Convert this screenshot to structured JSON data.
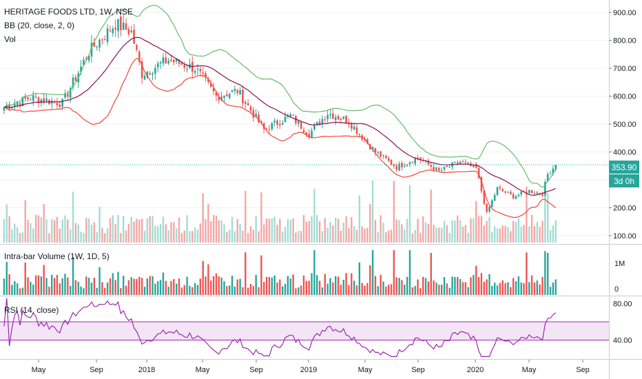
{
  "legend": {
    "title": "HERITAGE FOODS LTD, 1W, NSE",
    "bb": "BB (20, close, 2, 0)",
    "vol": "Vol",
    "intrabar": "Intra-bar Volume (1W, 1D, 5)",
    "rsi": "RSI (14, close)"
  },
  "price_badge": {
    "value": "353.90",
    "countdown": "3d 0h",
    "color": "#26a69a"
  },
  "colors": {
    "up": "#26a69a",
    "down": "#ef5350",
    "up_vol": "#a3dcd4",
    "down_vol": "#f5a6a5",
    "bb_upper": "#66bb6a",
    "bb_lower": "#f44336",
    "bb_basis": "#880e4f",
    "rsi": "#9c27b0",
    "rsi_band": "#f3e5f5"
  },
  "chart_data": [
    {
      "type": "candlestick",
      "title": "HERITAGE FOODS LTD, 1W, NSE",
      "y_ticks": [
        "900.00",
        "800.00",
        "700.00",
        "600.00",
        "500.00",
        "400.00",
        "300.00",
        "200.00",
        "100.00"
      ],
      "ylim": [
        75,
        945
      ],
      "x_ticks": [
        "May",
        "Sep",
        "2018",
        "May",
        "Sep",
        "2019",
        "May",
        "Sep",
        "2020",
        "May",
        "Sep"
      ],
      "last_close": 353.9,
      "anchors": [
        {
          "w": 0,
          "v": 560
        },
        {
          "w": 10,
          "v": 595
        },
        {
          "w": 22,
          "v": 575
        },
        {
          "w": 32,
          "v": 760
        },
        {
          "w": 42,
          "v": 860
        },
        {
          "w": 48,
          "v": 830
        },
        {
          "w": 52,
          "v": 680
        },
        {
          "w": 62,
          "v": 730
        },
        {
          "w": 72,
          "v": 700
        },
        {
          "w": 80,
          "v": 600
        },
        {
          "w": 88,
          "v": 620
        },
        {
          "w": 98,
          "v": 480
        },
        {
          "w": 108,
          "v": 530
        },
        {
          "w": 115,
          "v": 465
        },
        {
          "w": 122,
          "v": 540
        },
        {
          "w": 130,
          "v": 510
        },
        {
          "w": 140,
          "v": 400
        },
        {
          "w": 148,
          "v": 345
        },
        {
          "w": 156,
          "v": 380
        },
        {
          "w": 164,
          "v": 330
        },
        {
          "w": 172,
          "v": 365
        },
        {
          "w": 178,
          "v": 340
        },
        {
          "w": 182,
          "v": 180
        },
        {
          "w": 186,
          "v": 270
        },
        {
          "w": 192,
          "v": 240
        },
        {
          "w": 198,
          "v": 260
        },
        {
          "w": 203,
          "v": 250
        },
        {
          "w": 205,
          "v": 320
        },
        {
          "w": 208,
          "v": 353.9
        }
      ],
      "series": [
        {
          "name": "BB (20, close, 2, 0)",
          "indicator": "bollinger_bands",
          "length": 20,
          "mult": 2
        }
      ]
    },
    {
      "type": "bar",
      "title": "Vol"
    },
    {
      "type": "bar",
      "title": "Intra-bar Volume (1W, 1D, 5)",
      "y_ticks": [
        "1M",
        "0"
      ]
    },
    {
      "type": "line",
      "title": "RSI (14, close)",
      "y_ticks": [
        "80.00",
        "40.00"
      ],
      "bands": [
        40,
        60
      ]
    }
  ]
}
